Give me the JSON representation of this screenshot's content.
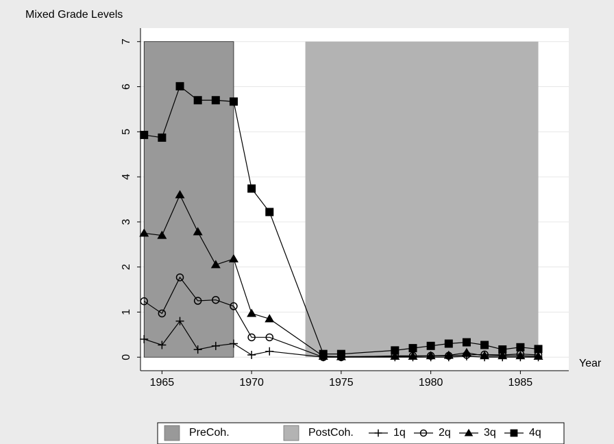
{
  "chart_data": {
    "type": "line",
    "title": "Mixed Grade Levels",
    "x_label": "Year",
    "x": [
      1964,
      1965,
      1966,
      1967,
      1968,
      1969,
      1970,
      1971,
      1974,
      1975,
      1978,
      1979,
      1980,
      1981,
      1982,
      1983,
      1984,
      1985,
      1986
    ],
    "bands": [
      {
        "name": "PreCoh.",
        "from": 1964,
        "to": 1969,
        "color": "#999999"
      },
      {
        "name": "PostCoh.",
        "from": 1973,
        "to": 1986,
        "color": "#b3b3b3"
      }
    ],
    "series": [
      {
        "name": "1q",
        "color": "#000000",
        "marker": "plus",
        "values": [
          0.4,
          0.27,
          0.8,
          0.17,
          0.25,
          0.3,
          0.05,
          0.13,
          0,
          0,
          0,
          0,
          0,
          0,
          0.02,
          0,
          0,
          0,
          0
        ]
      },
      {
        "name": "2q",
        "color": "#000000",
        "marker": "circle",
        "values": [
          1.24,
          0.97,
          1.77,
          1.25,
          1.27,
          1.13,
          0.44,
          0.44,
          0,
          0,
          0.03,
          0.03,
          0.03,
          0.03,
          0.05,
          0.06,
          0.05,
          0.07,
          0.05
        ]
      },
      {
        "name": "3q",
        "color": "#000000",
        "marker": "triangle",
        "values": [
          2.75,
          2.7,
          3.6,
          2.78,
          2.05,
          2.18,
          0.97,
          0.85,
          0.02,
          0.01,
          0.02,
          0.02,
          0.03,
          0.04,
          0.1,
          0.03,
          0.03,
          0.03,
          0.02
        ]
      },
      {
        "name": "4q",
        "color": "#000000",
        "marker": "square",
        "values": [
          4.93,
          4.87,
          6.01,
          5.7,
          5.7,
          5.67,
          3.74,
          3.22,
          0.07,
          0.07,
          0.15,
          0.2,
          0.25,
          0.3,
          0.33,
          0.27,
          0.17,
          0.22,
          0.18
        ]
      }
    ],
    "xlim": [
      1963.8,
      1987.7
    ],
    "xticks": [
      1965,
      1970,
      1975,
      1980,
      1985
    ],
    "ylim": [
      -0.3,
      7.3
    ],
    "yticks": [
      0,
      1,
      2,
      3,
      4,
      5,
      6,
      7
    ],
    "grid": true
  }
}
